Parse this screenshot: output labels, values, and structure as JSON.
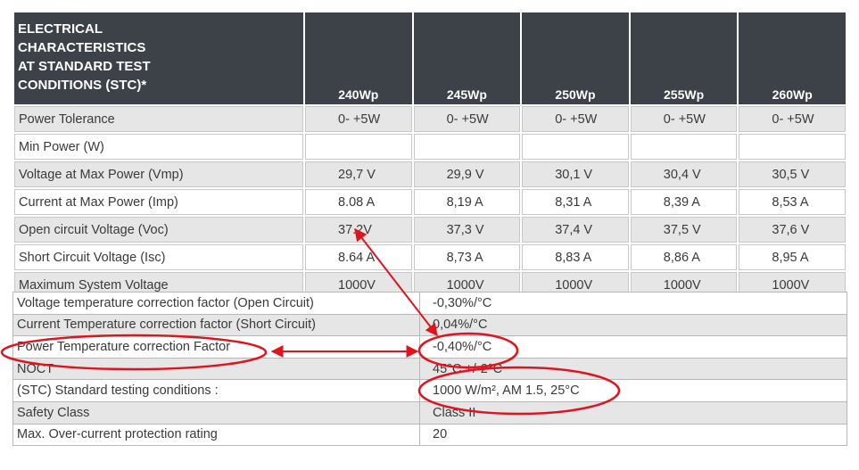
{
  "header": {
    "title_lines": [
      "ELECTRICAL",
      "CHARACTERISTICS",
      "AT STANDARD TEST",
      "CONDITIONS (STC)*"
    ],
    "models": [
      "240Wp",
      "245Wp",
      "250Wp",
      "255Wp",
      "260Wp"
    ]
  },
  "rows": [
    {
      "label": "Power Tolerance",
      "values": [
        "0- +5W",
        "0- +5W",
        "0- +5W",
        "0- +5W",
        "0- +5W"
      ]
    },
    {
      "label": "Min  Power (W)",
      "values": [
        "",
        "",
        "",
        "",
        ""
      ]
    },
    {
      "label": "Voltage at Max Power (Vmp)",
      "values": [
        "29,7 V",
        "29,9 V",
        "30,1 V",
        "30,4 V",
        "30,5 V"
      ]
    },
    {
      "label": "Current at Max Power (Imp)",
      "values": [
        "8.08 A",
        "8,19 A",
        "8,31 A",
        "8,39 A",
        "8,53 A"
      ]
    },
    {
      "label": "Open circuit Voltage (Voc)",
      "values": [
        "37.2V",
        "37,3 V",
        "37,4 V",
        "37,5 V",
        "37,6 V"
      ]
    },
    {
      "label": "Short Circuit Voltage (Isc)",
      "values": [
        "8.64 A",
        "8,73 A",
        "8,83 A",
        "8,86 A",
        "8,95 A"
      ]
    },
    {
      "label": "Maximum System Voltage",
      "values": [
        "1000V",
        "1000V",
        "1000V",
        "1000V",
        "1000V"
      ]
    }
  ],
  "extra_rows": [
    {
      "label": "Voltage temperature correction factor (Open Circuit)",
      "value": "-0,30%/°C"
    },
    {
      "label": "Current Temperature correction factor (Short Circuit)",
      "value": "0,04%/°C"
    },
    {
      "label": "Power Temperature correction Factor",
      "value": "-0,40%/°C"
    },
    {
      "label": "NOCT",
      "value": "45°C +/-2°C"
    },
    {
      "label": "(STC) Standard testing conditions :",
      "value": "1000 W/m², AM 1.5, 25°C"
    },
    {
      "label": "Safety Class",
      "value": "Class II"
    },
    {
      "label": "Max. Over-current protection rating",
      "value": "20"
    }
  ],
  "colors": {
    "header_bg": "#3d4148",
    "row_shade": "#e6e6e6",
    "annotation": "#e0141e"
  }
}
